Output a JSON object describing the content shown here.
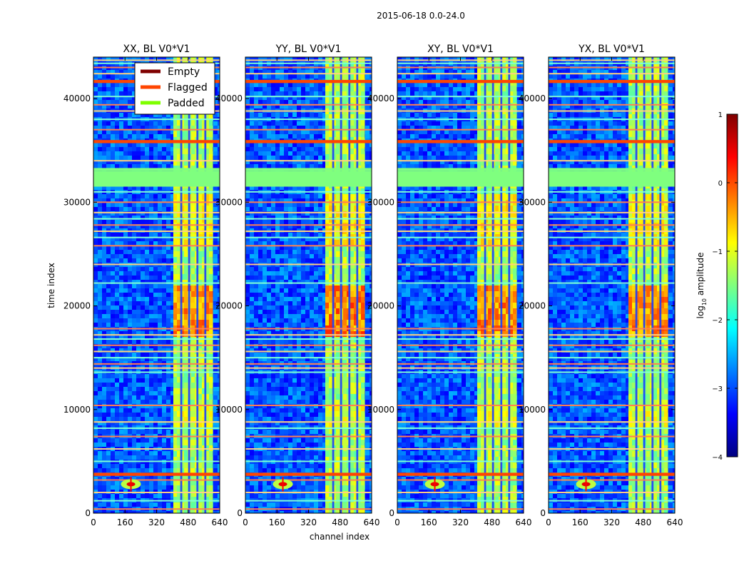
{
  "figure": {
    "suptitle": "2015-06-18 0.0-24.0",
    "colormap_stops": [
      "#00007f",
      "#0000ff",
      "#007fff",
      "#00ffff",
      "#7fff7f",
      "#ffff00",
      "#ff7f00",
      "#ff0000",
      "#7f0000"
    ]
  },
  "chart_data": {
    "type": "heatmap",
    "xlabel": "channel index",
    "ylabel": "time index",
    "xlim": [
      0,
      640
    ],
    "ylim": [
      0,
      44000
    ],
    "xticks": [
      "0",
      "160",
      "320",
      "480",
      "640"
    ],
    "yticks": [
      "0",
      "10000",
      "20000",
      "30000",
      "40000"
    ],
    "xtick_values": [
      0,
      160,
      320,
      480,
      640
    ],
    "ytick_values": [
      0,
      10000,
      20000,
      30000,
      40000
    ],
    "panels": [
      {
        "title": "XX, BL V0*V1",
        "intensity": 0.85
      },
      {
        "title": "YY, BL V0*V1",
        "intensity": 1.0
      },
      {
        "title": "XY, BL V0*V1",
        "intensity": 0.9
      },
      {
        "title": "YX, BL V0*V1",
        "intensity": 0.85
      }
    ],
    "active_band_channels": [
      [
        405,
        600
      ]
    ],
    "band_gap_channels": [
      [
        440,
        450
      ],
      [
        480,
        490
      ],
      [
        522,
        532
      ],
      [
        562,
        572
      ]
    ],
    "padded_time_ranges": [
      [
        31500,
        33000
      ],
      [
        33000,
        33300
      ]
    ],
    "flagged_time_ranges": [
      [
        35700,
        36000
      ],
      [
        3600,
        3900
      ],
      [
        41500,
        41800
      ]
    ],
    "flag_lines_time": [
      400,
      1200,
      2000,
      3200,
      5000,
      6200,
      7400,
      8200,
      8800,
      10400,
      13600,
      14000,
      14400,
      15000,
      15600,
      16200,
      16800,
      17200,
      17800,
      22200,
      24000,
      25800,
      26600,
      27200,
      27800,
      28400,
      29000,
      30000,
      31000,
      34000,
      37000,
      38000,
      38800,
      39400,
      40200,
      42400,
      43000,
      43400,
      43700
    ],
    "hotspot": {
      "channel": 190,
      "time": 2800,
      "log10_amplitude": 0.5
    },
    "colorbar": {
      "label": "log10 amplitude",
      "label_base": "log",
      "label_sub": "10",
      "label_rest": " amplitude",
      "range": [
        -4,
        1
      ],
      "ticks": [
        "1",
        "0",
        "−1",
        "−2",
        "−3",
        "−4"
      ],
      "tick_values": [
        1,
        0,
        -1,
        -2,
        -3,
        -4
      ]
    },
    "legend": {
      "position": "top-left (first panel)",
      "entries": [
        {
          "label": "Empty",
          "color": "#7f0000"
        },
        {
          "label": "Flagged",
          "color": "#ff4500"
        },
        {
          "label": "Padded",
          "color": "#7fff00"
        }
      ]
    }
  }
}
